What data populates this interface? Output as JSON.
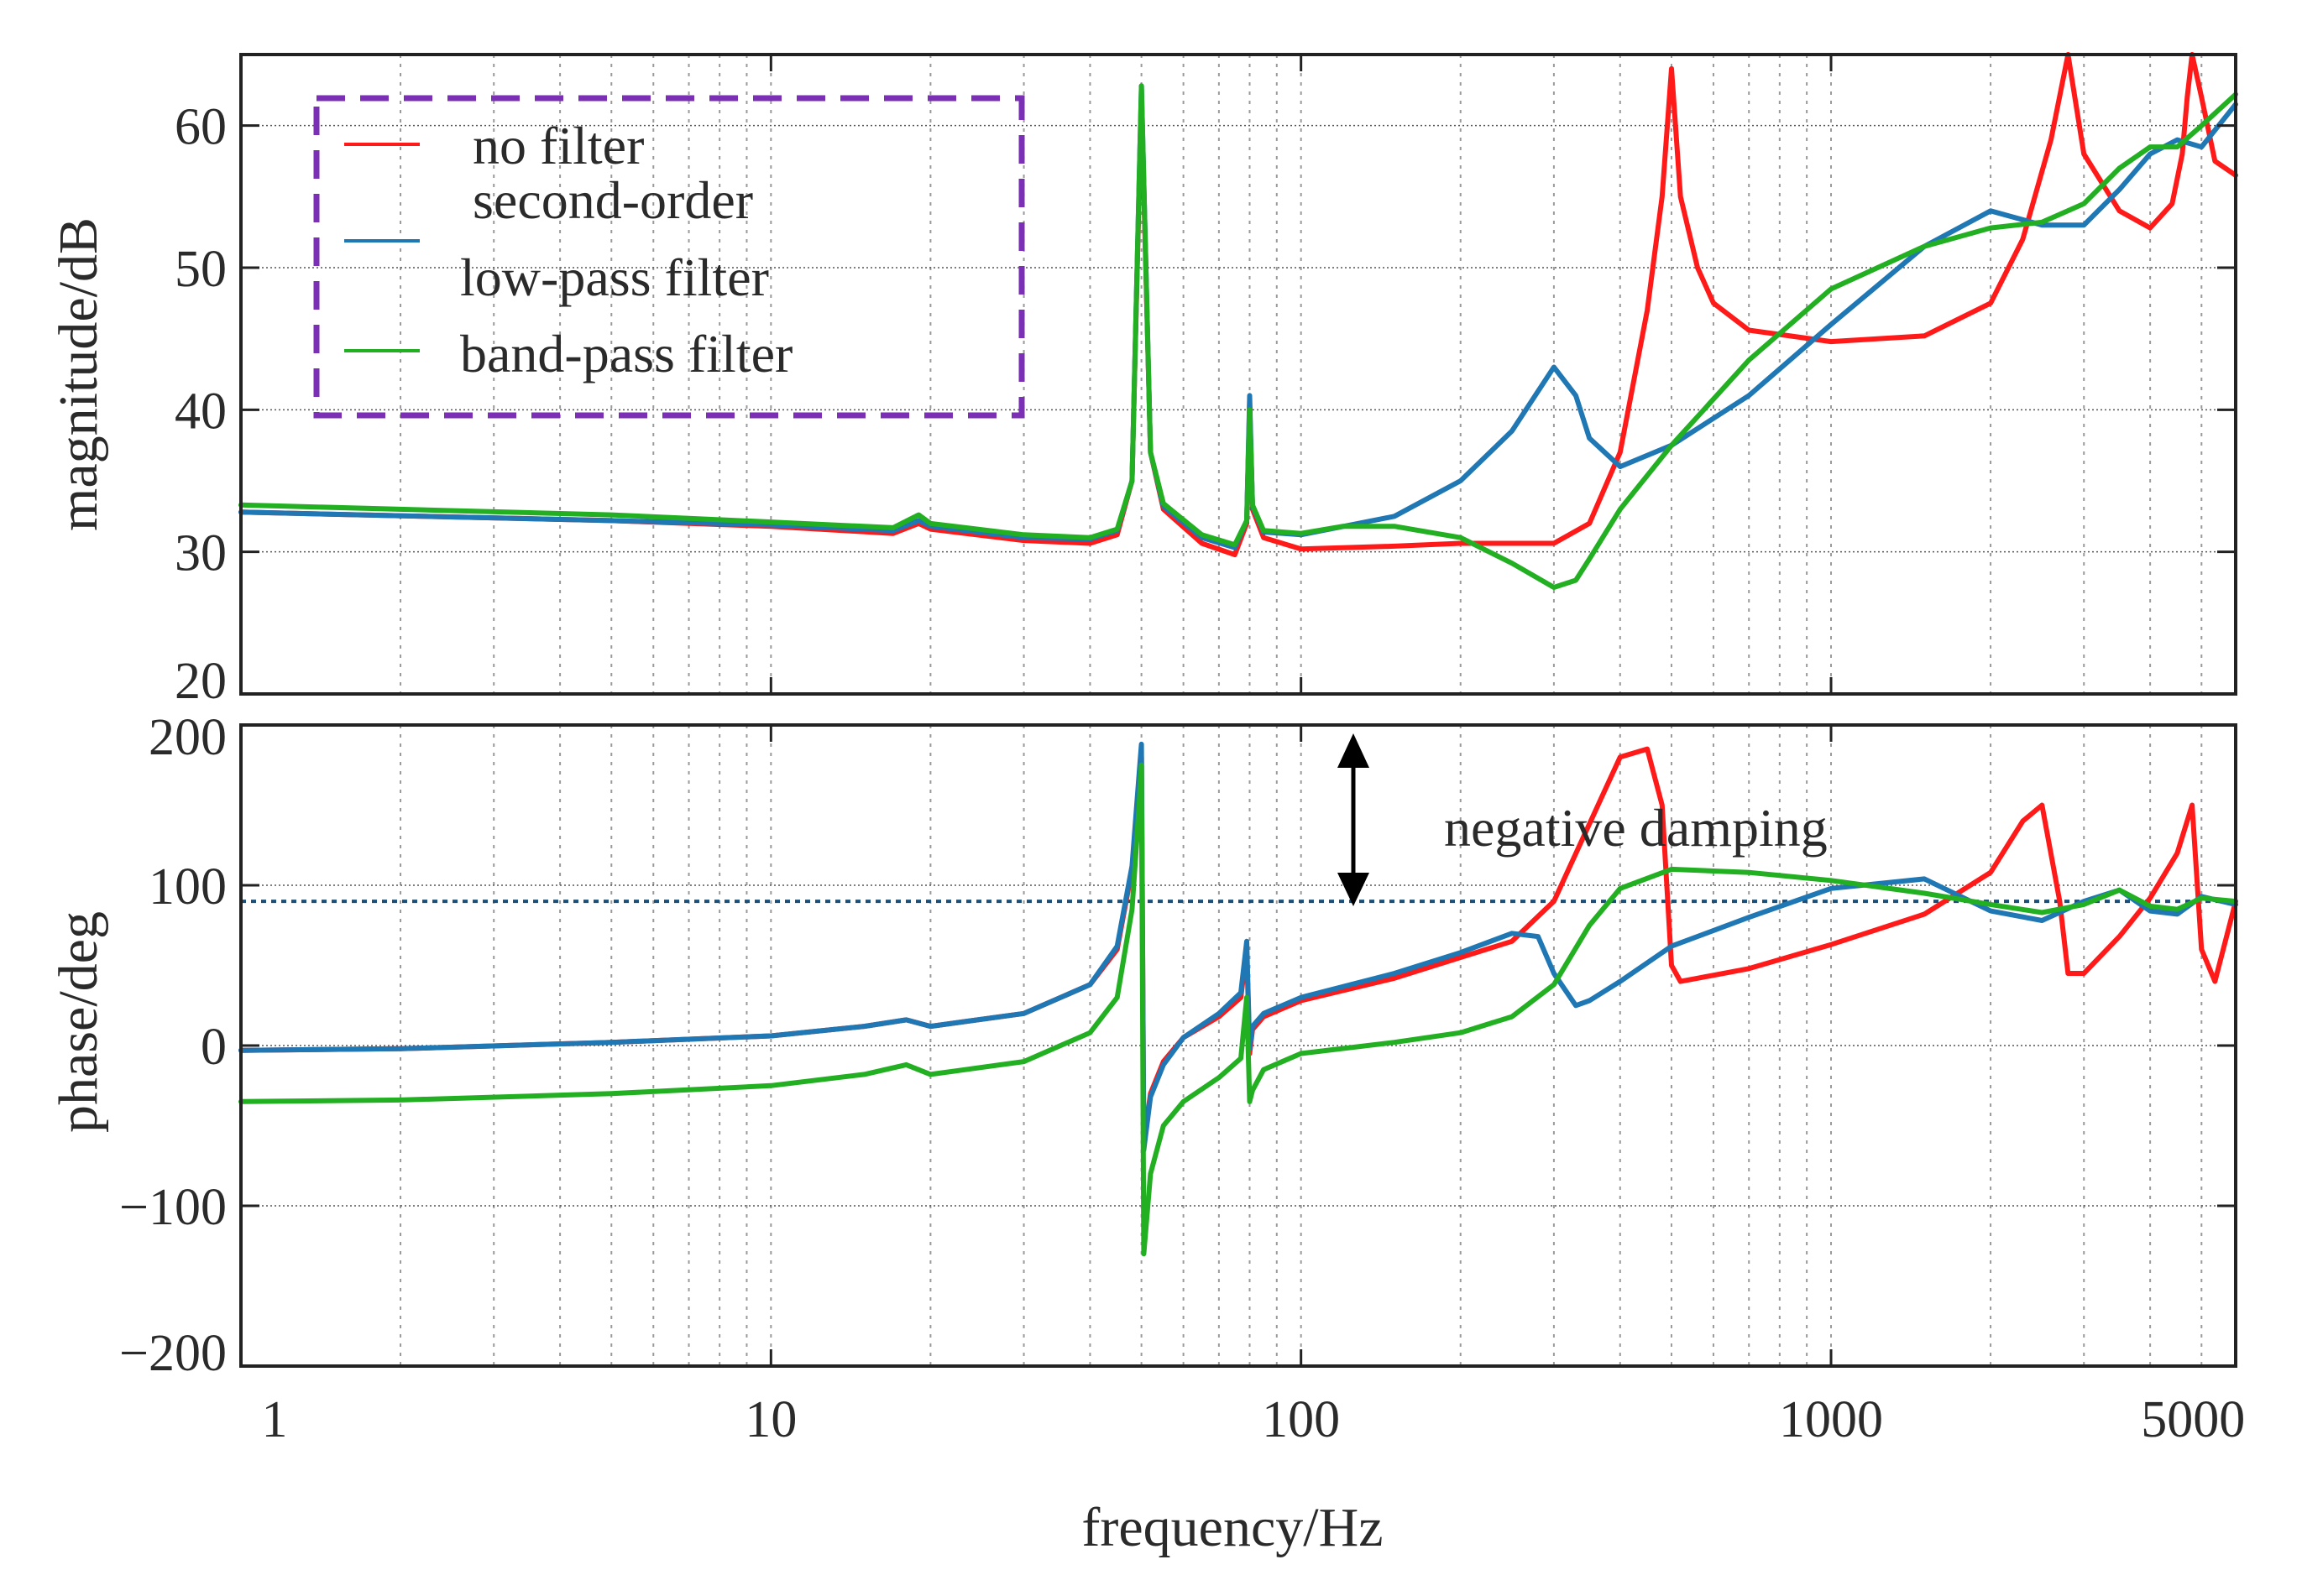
{
  "chart_data": [
    {
      "type": "line",
      "panel": "magnitude",
      "xscale": "log",
      "xlim": [
        1,
        5800
      ],
      "ylim": [
        20,
        65
      ],
      "yticks": [
        20,
        30,
        40,
        50,
        60
      ],
      "ytick_labels": [
        "20",
        "30",
        "40",
        "50",
        "60"
      ],
      "ylabel": "magnitude/dB",
      "grid": true,
      "legend": {
        "placement": "top-left",
        "frame": "dashed purple box",
        "entries": [
          {
            "label": "no filter",
            "color": "#ff1a1a"
          },
          {
            "label": "second-order",
            "color": null
          },
          {
            "label": "low-pass filter",
            "color": "#1f77b4"
          },
          {
            "label": "band-pass filter",
            "color": "#22b022"
          }
        ]
      },
      "series": [
        {
          "name": "no filter",
          "color": "#ff1a1a",
          "x": [
            1,
            5,
            10,
            17,
            19,
            20,
            30,
            40,
            45,
            48,
            50,
            52,
            55,
            65,
            75,
            79,
            80,
            81,
            85,
            100,
            150,
            200,
            300,
            350,
            400,
            450,
            480,
            500,
            520,
            560,
            600,
            700,
            1000,
            1500,
            2000,
            2300,
            2600,
            2800,
            3000,
            3500,
            4000,
            4400,
            4600,
            4700,
            4800,
            5000,
            5300,
            5800
          ],
          "y": [
            32.8,
            32.2,
            31.8,
            31.3,
            32.0,
            31.6,
            30.8,
            30.6,
            31.2,
            35.0,
            62.0,
            37.0,
            33.0,
            30.6,
            29.8,
            32.0,
            40.5,
            33.0,
            31.0,
            30.2,
            30.4,
            30.6,
            30.6,
            32.0,
            37.0,
            47.0,
            55.0,
            64.0,
            55.0,
            50.0,
            47.5,
            45.6,
            44.8,
            45.2,
            47.5,
            52.0,
            59.0,
            65.0,
            58.0,
            54.0,
            52.8,
            54.5,
            58.0,
            62.0,
            65.0,
            62.0,
            57.5,
            56.5
          ]
        },
        {
          "name": "low-pass filter",
          "color": "#1f77b4",
          "x": [
            1,
            5,
            10,
            17,
            19,
            20,
            30,
            40,
            45,
            48,
            50,
            52,
            55,
            65,
            75,
            79,
            80,
            81,
            85,
            100,
            150,
            200,
            250,
            300,
            330,
            350,
            400,
            500,
            700,
            1000,
            1500,
            2000,
            2500,
            3000,
            3500,
            4000,
            4500,
            5000,
            5800
          ],
          "y": [
            32.8,
            32.2,
            31.9,
            31.5,
            32.2,
            31.8,
            31.0,
            30.9,
            31.5,
            35.0,
            62.8,
            37.0,
            33.2,
            31.0,
            30.3,
            32.2,
            41.0,
            33.2,
            31.4,
            31.2,
            32.5,
            35.0,
            38.5,
            43.0,
            41.0,
            38.0,
            36.0,
            37.5,
            41.0,
            46.0,
            51.5,
            54.0,
            53.0,
            53.0,
            55.5,
            58.0,
            59.0,
            58.5,
            61.5
          ]
        },
        {
          "name": "band-pass filter",
          "color": "#22b022",
          "x": [
            1,
            5,
            10,
            17,
            19,
            20,
            30,
            40,
            45,
            48,
            50,
            52,
            55,
            65,
            75,
            79,
            80,
            81,
            85,
            100,
            120,
            150,
            200,
            250,
            300,
            330,
            350,
            400,
            500,
            700,
            1000,
            1500,
            2000,
            2500,
            3000,
            3500,
            4000,
            4500,
            5000,
            5800
          ],
          "y": [
            33.3,
            32.6,
            32.1,
            31.7,
            32.6,
            32.0,
            31.2,
            31.0,
            31.6,
            35.0,
            62.8,
            37.0,
            33.4,
            31.2,
            30.5,
            32.2,
            40.0,
            33.3,
            31.5,
            31.3,
            31.8,
            31.8,
            31.0,
            29.2,
            27.5,
            28.0,
            29.5,
            33.0,
            37.5,
            43.5,
            48.5,
            51.5,
            52.8,
            53.2,
            54.5,
            57.0,
            58.5,
            58.5,
            60.0,
            62.2
          ]
        }
      ]
    },
    {
      "type": "line",
      "panel": "phase",
      "xscale": "log",
      "xlim": [
        1,
        5800
      ],
      "ylim": [
        -200,
        200
      ],
      "yticks": [
        -200,
        -100,
        0,
        100,
        200
      ],
      "ytick_labels": [
        "−200",
        "−100",
        "0",
        "100",
        "200"
      ],
      "ylabel": "phase/deg",
      "xlabel": "frequency/Hz",
      "xticks": [
        1,
        10,
        100,
        1000,
        5000
      ],
      "xtick_labels": [
        "1",
        "10",
        "100",
        "1000",
        "5000"
      ],
      "grid": true,
      "reference_line": {
        "y": 90,
        "style": "dotted",
        "color": "#1a4f7a"
      },
      "annotations": [
        {
          "text": "negative damping",
          "type": "label",
          "x": 350,
          "y": 135
        },
        {
          "type": "double-arrow",
          "x": 110,
          "y_from": 90,
          "y_to": 195
        }
      ],
      "series": [
        {
          "name": "no filter",
          "color": "#ff1a1a",
          "x": [
            1,
            2,
            5,
            10,
            15,
            18,
            20,
            30,
            40,
            45,
            48,
            49.5,
            50,
            50.5,
            52,
            55,
            60,
            70,
            77,
            79,
            80,
            81,
            85,
            100,
            150,
            200,
            250,
            300,
            400,
            450,
            480,
            500,
            520,
            560,
            700,
            1000,
            1500,
            2000,
            2300,
            2500,
            2700,
            2800,
            3000,
            3500,
            4000,
            4500,
            4800,
            5000,
            5300,
            5800
          ],
          "y": [
            -3,
            -2,
            2,
            6,
            12,
            16,
            12,
            20,
            38,
            60,
            110,
            165,
            180,
            -60,
            -30,
            -10,
            5,
            18,
            30,
            60,
            -5,
            10,
            18,
            28,
            42,
            55,
            65,
            90,
            180,
            185,
            150,
            50,
            40,
            42,
            48,
            63,
            82,
            108,
            140,
            150,
            90,
            45,
            45,
            68,
            92,
            120,
            150,
            60,
            40,
            90
          ]
        },
        {
          "name": "low-pass filter",
          "color": "#1f77b4",
          "x": [
            1,
            2,
            5,
            10,
            15,
            18,
            20,
            30,
            40,
            45,
            48,
            49.5,
            50,
            50.5,
            52,
            55,
            60,
            70,
            77,
            79,
            80,
            81,
            85,
            100,
            150,
            200,
            250,
            280,
            300,
            330,
            350,
            400,
            500,
            700,
            1000,
            1500,
            2000,
            2500,
            3000,
            3500,
            4000,
            4500,
            5000,
            5800
          ],
          "y": [
            -3,
            -2,
            2,
            6,
            12,
            16,
            12,
            20,
            38,
            62,
            112,
            170,
            188,
            -65,
            -32,
            -12,
            5,
            20,
            33,
            65,
            -2,
            12,
            20,
            30,
            45,
            58,
            70,
            68,
            45,
            25,
            28,
            40,
            62,
            80,
            98,
            104,
            84,
            78,
            90,
            97,
            84,
            82,
            93,
            88
          ]
        },
        {
          "name": "band-pass filter",
          "color": "#22b022",
          "x": [
            1,
            2,
            5,
            10,
            15,
            18,
            20,
            30,
            40,
            45,
            48,
            49.5,
            50,
            50.5,
            52,
            55,
            60,
            70,
            77,
            79,
            80,
            81,
            85,
            100,
            150,
            200,
            250,
            300,
            350,
            400,
            500,
            700,
            1000,
            1500,
            2000,
            2500,
            3000,
            3500,
            4000,
            4500,
            5000,
            5800
          ],
          "y": [
            -35,
            -34,
            -30,
            -25,
            -18,
            -12,
            -18,
            -10,
            8,
            30,
            85,
            150,
            175,
            -130,
            -80,
            -50,
            -35,
            -20,
            -8,
            30,
            -35,
            -28,
            -15,
            -5,
            2,
            8,
            18,
            38,
            75,
            98,
            110,
            108,
            103,
            95,
            88,
            83,
            88,
            97,
            87,
            85,
            92,
            90
          ]
        }
      ]
    }
  ]
}
